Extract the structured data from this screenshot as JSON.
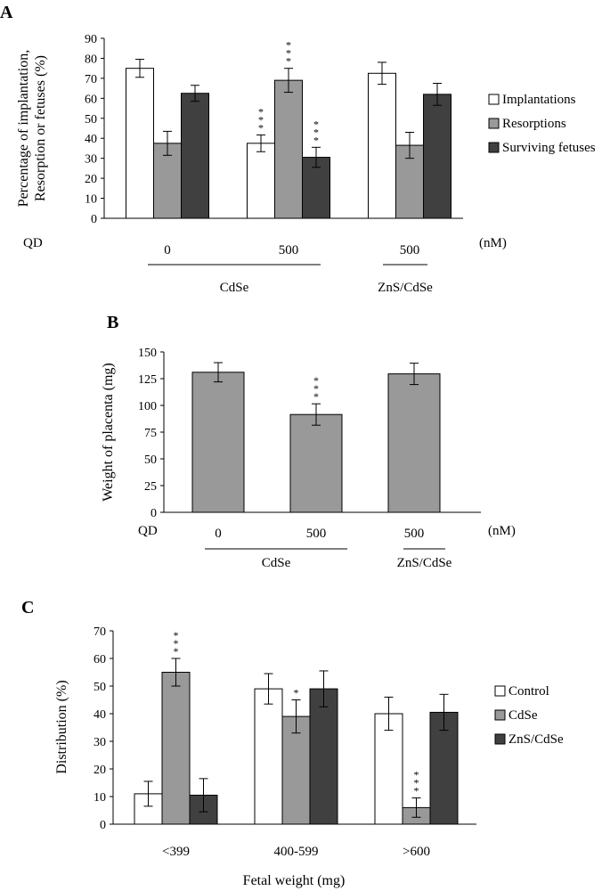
{
  "chart_data": [
    {
      "panel": "A",
      "type": "bar",
      "ylabel": "Percentage of implantation, Resorption or fetuses (%)",
      "ylim": [
        0,
        90
      ],
      "ytick_step": 10,
      "categories": [
        "0",
        "500",
        "500"
      ],
      "x_prefix": "QD",
      "x_unit": "(nM)",
      "groups": [
        {
          "label": "CdSe",
          "span": [
            0,
            1
          ]
        },
        {
          "label": "ZnS/CdSe",
          "span": [
            2,
            2
          ]
        }
      ],
      "series": [
        {
          "name": "Implantations",
          "color": "#ffffff",
          "values": [
            75,
            37.5,
            72.5
          ],
          "errors": [
            4.5,
            4.2,
            5.5
          ],
          "sig": [
            "",
            "***",
            ""
          ]
        },
        {
          "name": "Resorptions",
          "color": "#999999",
          "values": [
            37.5,
            69,
            36.5
          ],
          "errors": [
            6,
            6,
            6.5
          ],
          "sig": [
            "",
            "***",
            ""
          ]
        },
        {
          "name": "Surviving fetuses",
          "color": "#404040",
          "values": [
            62.5,
            30.5,
            62
          ],
          "errors": [
            4,
            5,
            5.5
          ],
          "sig": [
            "",
            "***",
            ""
          ]
        }
      ],
      "legend_position": "right"
    },
    {
      "panel": "B",
      "type": "bar",
      "ylabel": "Weight of placenta (mg)",
      "ylim": [
        0,
        150
      ],
      "ytick_step": 25,
      "categories": [
        "0",
        "500",
        "500"
      ],
      "x_prefix": "QD",
      "x_unit": "(nM)",
      "groups": [
        {
          "label": "CdSe",
          "span": [
            0,
            1
          ]
        },
        {
          "label": "ZnS/CdSe",
          "span": [
            2,
            2
          ]
        }
      ],
      "series": [
        {
          "name": "Placenta weight",
          "color": "#999999",
          "values": [
            131,
            91.5,
            129.5
          ],
          "errors": [
            9,
            10,
            10
          ],
          "sig": [
            "",
            "***",
            ""
          ]
        }
      ]
    },
    {
      "panel": "C",
      "type": "bar",
      "xlabel": "Fetal weight (mg)",
      "ylabel": "Distribution (%)",
      "ylim": [
        0,
        70
      ],
      "ytick_step": 10,
      "categories": [
        "<399",
        "400-599",
        ">600"
      ],
      "series": [
        {
          "name": "Control",
          "color": "#ffffff",
          "values": [
            11,
            49,
            40
          ],
          "errors": [
            4.5,
            5.5,
            6
          ],
          "sig": [
            "",
            "",
            ""
          ]
        },
        {
          "name": "CdSe",
          "color": "#999999",
          "values": [
            55,
            39,
            6
          ],
          "errors": [
            5,
            6,
            3.5
          ],
          "sig": [
            "***",
            "*",
            "***"
          ]
        },
        {
          "name": "ZnS/CdSe",
          "color": "#404040",
          "values": [
            10.5,
            49,
            40.5
          ],
          "errors": [
            6,
            6.5,
            6.5
          ],
          "sig": [
            "",
            "",
            ""
          ]
        }
      ],
      "legend_position": "right"
    }
  ]
}
